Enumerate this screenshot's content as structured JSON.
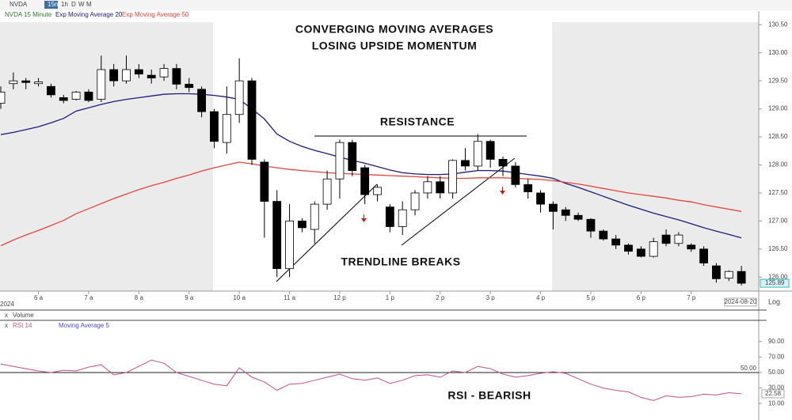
{
  "ui": {
    "symbol": "NVDA",
    "intervals": [
      "15m",
      "1h",
      "D",
      "W",
      "M"
    ],
    "study_label": "NVDA 15 Minute",
    "volume": "Volume",
    "rsi_ma": "Moving Average 5",
    "date_box": "2024-08-20",
    "log": "Log",
    "year": "2024"
  },
  "chart_data": [
    {
      "type": "candlestick",
      "annotations": [
        "CONVERGING MOVING AVERAGES",
        "LOSING UPSIDE MOMENTUM",
        "RESISTANCE",
        "TRENDLINE BREAKS"
      ],
      "categories": [
        null,
        null,
        null,
        "6 a",
        null,
        null,
        null,
        "7 a",
        null,
        null,
        null,
        "8 a",
        null,
        null,
        null,
        "9 a",
        null,
        null,
        null,
        "10 a",
        null,
        null,
        null,
        "11 a",
        null,
        null,
        null,
        "12 p",
        null,
        null,
        null,
        "1 p",
        null,
        null,
        null,
        "2 p",
        null,
        null,
        null,
        "3 p",
        null,
        null,
        null,
        "4 p",
        null,
        null,
        null,
        "5 p",
        null,
        null,
        null,
        "6 p",
        null,
        null,
        null,
        "7 p",
        null,
        null,
        null,
        null
      ],
      "open": [
        129.1,
        129.45,
        129.5,
        129.45,
        129.4,
        129.2,
        129.17,
        129.3,
        129.17,
        129.7,
        129.5,
        129.7,
        129.6,
        129.57,
        129.72,
        129.44,
        129.35,
        128.95,
        128.4,
        128.9,
        129.5,
        128.05,
        127.35,
        126.15,
        127.0,
        126.85,
        127.3,
        127.75,
        128.4,
        127.95,
        127.47,
        127.25,
        126.9,
        127.2,
        127.5,
        127.7,
        127.5,
        128.08,
        127.98,
        128.42,
        128.1,
        127.98,
        127.65,
        127.5,
        127.3,
        127.2,
        127.1,
        127.03,
        126.82,
        126.68,
        126.57,
        126.5,
        126.37,
        126.75,
        126.6,
        126.57,
        126.5,
        126.2,
        125.98,
        126.1
      ],
      "high": [
        129.4,
        129.65,
        129.55,
        129.55,
        129.45,
        129.25,
        129.32,
        129.35,
        129.95,
        129.8,
        129.95,
        129.8,
        129.7,
        129.8,
        129.8,
        129.55,
        129.4,
        129.0,
        129.4,
        129.9,
        129.55,
        128.1,
        127.55,
        127.3,
        127.05,
        127.35,
        127.9,
        128.45,
        128.45,
        128.0,
        127.65,
        127.3,
        127.35,
        127.55,
        127.8,
        127.8,
        128.1,
        128.3,
        128.55,
        128.45,
        128.15,
        128.05,
        127.75,
        127.55,
        127.35,
        127.25,
        127.15,
        127.05,
        126.85,
        126.75,
        126.6,
        126.55,
        126.7,
        126.85,
        126.8,
        126.6,
        126.55,
        126.25,
        126.12,
        126.2
      ],
      "low": [
        129.0,
        129.35,
        129.35,
        129.4,
        129.2,
        129.1,
        129.15,
        129.12,
        129.12,
        129.4,
        129.45,
        129.55,
        129.45,
        129.5,
        129.35,
        129.3,
        128.85,
        128.3,
        128.2,
        128.75,
        128.0,
        126.7,
        126.0,
        126.0,
        126.8,
        126.6,
        127.2,
        127.4,
        127.8,
        127.3,
        127.35,
        126.8,
        126.75,
        127.1,
        127.4,
        127.4,
        127.4,
        127.9,
        127.9,
        127.95,
        127.8,
        127.6,
        127.4,
        127.15,
        126.85,
        127.0,
        127.0,
        126.7,
        126.65,
        126.5,
        126.4,
        126.35,
        126.35,
        126.55,
        126.55,
        126.45,
        126.2,
        125.9,
        125.93,
        125.85
      ],
      "close": [
        129.3,
        129.5,
        129.47,
        129.48,
        129.25,
        129.15,
        129.3,
        129.15,
        129.7,
        129.5,
        129.7,
        129.62,
        129.55,
        129.72,
        129.44,
        129.38,
        128.95,
        128.42,
        128.9,
        129.5,
        128.1,
        127.35,
        126.15,
        127.0,
        126.88,
        127.3,
        127.75,
        128.4,
        127.9,
        127.47,
        127.6,
        126.9,
        127.2,
        127.5,
        127.7,
        127.5,
        128.08,
        127.98,
        128.42,
        128.1,
        127.98,
        127.65,
        127.52,
        127.3,
        127.17,
        127.1,
        127.03,
        126.82,
        126.68,
        126.57,
        126.46,
        126.37,
        126.63,
        126.6,
        126.75,
        126.5,
        126.25,
        125.97,
        126.1,
        125.89
      ],
      "up_color": "#ffffff",
      "down_color": "#000000",
      "series": [
        {
          "name": "Exp Moving Average 20",
          "color": "#1b1b7a",
          "values": [
            128.54,
            128.58,
            128.63,
            128.68,
            128.75,
            128.83,
            128.96,
            129.02,
            129.08,
            129.13,
            129.17,
            129.2,
            129.23,
            129.26,
            129.27,
            129.27,
            129.26,
            129.24,
            129.21,
            129.17,
            129.0,
            128.82,
            128.55,
            128.42,
            128.33,
            128.26,
            128.2,
            128.14,
            128.08,
            128.03,
            127.97,
            127.91,
            127.86,
            127.84,
            127.83,
            127.83,
            127.84,
            127.87,
            127.9,
            127.9,
            127.89,
            127.86,
            127.83,
            127.8,
            127.76,
            127.67,
            127.6,
            127.52,
            127.44,
            127.36,
            127.28,
            127.21,
            127.14,
            127.08,
            127.02,
            126.95,
            126.88,
            126.82,
            126.76,
            126.7
          ]
        },
        {
          "name": "Exp Moving Average 50",
          "color": "#e0463c",
          "values": [
            126.56,
            126.66,
            126.75,
            126.83,
            126.92,
            127.01,
            127.13,
            127.22,
            127.31,
            127.4,
            127.48,
            127.56,
            127.63,
            127.69,
            127.76,
            127.82,
            127.89,
            127.95,
            128.0,
            128.05,
            128.02,
            127.98,
            127.95,
            127.92,
            127.9,
            127.88,
            127.86,
            127.85,
            127.84,
            127.83,
            127.82,
            127.81,
            127.8,
            127.79,
            127.78,
            127.77,
            127.76,
            127.76,
            127.77,
            127.77,
            127.77,
            127.76,
            127.75,
            127.74,
            127.72,
            127.69,
            127.66,
            127.62,
            127.58,
            127.54,
            127.5,
            127.47,
            127.44,
            127.41,
            127.37,
            127.34,
            127.29,
            127.25,
            127.21,
            127.17
          ]
        }
      ],
      "ylim": [
        125.75,
        130.73
      ],
      "yticks": [
        {
          "value": 130.5,
          "label": "130.50"
        },
        {
          "value": 130,
          "label": "130.00"
        },
        {
          "value": 129.5,
          "label": "129.50"
        },
        {
          "value": 129,
          "label": "129.00"
        },
        {
          "value": 128.5,
          "label": "128.50"
        },
        {
          "value": 128,
          "label": "128.00"
        },
        {
          "value": 127.5,
          "label": "127.50"
        },
        {
          "value": 127,
          "label": "127.00"
        },
        {
          "value": 126.5,
          "label": "126.50"
        },
        {
          "value": 126,
          "label": "126.00"
        }
      ]
    },
    {
      "type": "line",
      "annotations": [
        "RSI - BEARISH"
      ],
      "series": [
        {
          "name": "RSI 14",
          "color": "#c0508a",
          "values": [
            61,
            58,
            55,
            52,
            50,
            53,
            52,
            57,
            60,
            47,
            50,
            58,
            66,
            62,
            50,
            45,
            40,
            35,
            33,
            56,
            44,
            38,
            27,
            35,
            36,
            40,
            44,
            48,
            42,
            40,
            43,
            36,
            40,
            46,
            47,
            44,
            52,
            50,
            58,
            55,
            48,
            44,
            46,
            49,
            51,
            49,
            42,
            35,
            30,
            27,
            25,
            18,
            14,
            20,
            18,
            19,
            22,
            21,
            24,
            22.58
          ]
        }
      ],
      "reference": {
        "value": 50,
        "label": "50.00"
      },
      "ylim": [
        0,
        100
      ],
      "yticks": [
        {
          "value": 90,
          "label": "90.00"
        },
        {
          "value": 70,
          "label": "70.00"
        },
        {
          "value": 50,
          "label": "50.00"
        },
        {
          "value": 30,
          "label": "30.00"
        },
        {
          "value": 10,
          "label": "10.00"
        }
      ]
    }
  ]
}
